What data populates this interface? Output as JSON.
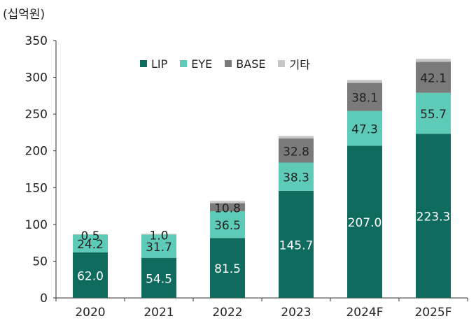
{
  "chart_data": {
    "type": "bar",
    "stacked": true,
    "unit_label": "(십억원)",
    "categories": [
      "2020",
      "2021",
      "2022",
      "2023",
      "2024F",
      "2025F"
    ],
    "series": [
      {
        "name": "LIP",
        "color": "#0f6b5e",
        "values": [
          62.0,
          54.5,
          81.5,
          145.7,
          207.0,
          223.3
        ],
        "labels": [
          "62.0",
          "54.5",
          "81.5",
          "145.7",
          "207.0",
          "223.3"
        ]
      },
      {
        "name": "EYE",
        "color": "#5ecbb8",
        "values": [
          24.2,
          31.7,
          36.5,
          38.3,
          47.3,
          55.7
        ],
        "labels": [
          "24.2",
          "31.7",
          "36.5",
          "38.3",
          "47.3",
          "55.7"
        ]
      },
      {
        "name": "BASE",
        "color": "#7a7a7a",
        "values": [
          0,
          0,
          10.8,
          32.8,
          38.1,
          42.1
        ],
        "labels": [
          "",
          "",
          "10.8",
          "32.8",
          "38.1",
          "42.1"
        ]
      },
      {
        "name": "기타",
        "color": "#c6c6c6",
        "values": [
          0.5,
          1.0,
          3.0,
          3.5,
          4.0,
          4.0
        ],
        "labels": [
          "0.5",
          "1.0",
          "",
          "",
          "",
          ""
        ]
      }
    ],
    "yticks": [
      "0",
      "50",
      "100",
      "150",
      "200",
      "250",
      "300",
      "350"
    ],
    "ylim": [
      0,
      350
    ],
    "legend_position": "top"
  }
}
